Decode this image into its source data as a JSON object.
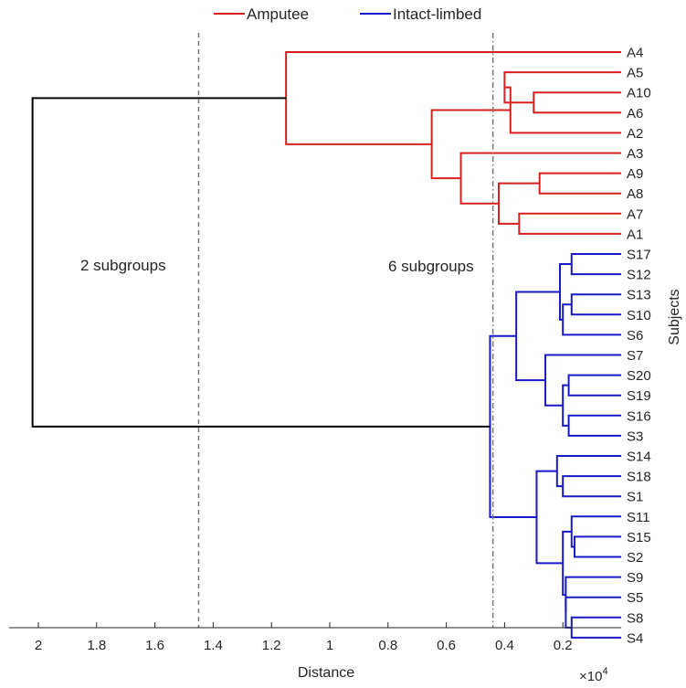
{
  "chart_data": {
    "type": "dendrogram",
    "orientation": "leaves-right, distance-axis-reversed",
    "xlabel": "Distance",
    "ylabel": "Subjects",
    "x_exponent_label": "×10",
    "x_exponent_power": "4",
    "xlim": [
      0,
      2.1
    ],
    "x_ticks": [
      2,
      1.8,
      1.6,
      1.4,
      1.2,
      1,
      0.8,
      0.6,
      0.4,
      0.2
    ],
    "x_tick_labels": [
      "2",
      "1.8",
      "1.6",
      "1.4",
      "1.2",
      "1",
      "0.8",
      "0.6",
      "0.4",
      "0.2"
    ],
    "legend": {
      "placement": "top-center",
      "entries": [
        {
          "label": "Amputee",
          "color": "#d62020"
        },
        {
          "label": "Intact-limbed",
          "color": "#1919c8"
        }
      ]
    },
    "leaves": [
      "A4",
      "A5",
      "A10",
      "A6",
      "A2",
      "A3",
      "A9",
      "A8",
      "A7",
      "A1",
      "S17",
      "S12",
      "S13",
      "S10",
      "S6",
      "S7",
      "S20",
      "S19",
      "S16",
      "S3",
      "S14",
      "S18",
      "S1",
      "S11",
      "S15",
      "S2",
      "S9",
      "S5",
      "S8",
      "S4"
    ],
    "merges": [
      {
        "a": "A10",
        "b": "A6",
        "height": 0.3
      },
      {
        "a": "A5",
        "b": "A10+A6",
        "height": 0.4
      },
      {
        "a": "A5+A10+A6",
        "b": "A2",
        "height": 0.38
      },
      {
        "a": "A9",
        "b": "A8",
        "height": 0.28
      },
      {
        "a": "A7",
        "b": "A1",
        "height": 0.35
      },
      {
        "a": "A9+A8",
        "b": "A7+A1",
        "height": 0.42
      },
      {
        "a": "A3",
        "b": "A9+A8+A7+A1",
        "height": 0.55
      },
      {
        "a": "A5..A2",
        "b": "A3..A1",
        "height": 0.65
      },
      {
        "a": "A4",
        "b": "A5..A1",
        "height": 1.15
      },
      {
        "a": "S17",
        "b": "S12",
        "height": 0.17
      },
      {
        "a": "S13",
        "b": "S10",
        "height": 0.17
      },
      {
        "a": "S13+S10",
        "b": "S6",
        "height": 0.2
      },
      {
        "a": "S17+S12",
        "b": "S13+S10+S6",
        "height": 0.21
      },
      {
        "a": "S20",
        "b": "S19",
        "height": 0.18
      },
      {
        "a": "S16",
        "b": "S3",
        "height": 0.18
      },
      {
        "a": "S20+S19",
        "b": "S16+S3",
        "height": 0.2
      },
      {
        "a": "S7",
        "b": "S20+S19+S16+S3",
        "height": 0.26
      },
      {
        "a": "S17..S6",
        "b": "S7..S3",
        "height": 0.36
      },
      {
        "a": "S18",
        "b": "S1",
        "height": 0.2
      },
      {
        "a": "S14",
        "b": "S18+S1",
        "height": 0.22
      },
      {
        "a": "S15",
        "b": "S2",
        "height": 0.16
      },
      {
        "a": "S11",
        "b": "S15+S2",
        "height": 0.17
      },
      {
        "a": "S8",
        "b": "S4",
        "height": 0.17
      },
      {
        "a": "S5",
        "b": "S8+S4",
        "height": 0.19
      },
      {
        "a": "S9",
        "b": "S5+S8+S4",
        "height": 0.19
      },
      {
        "a": "S11+S15+S2",
        "b": "S9..S4",
        "height": 0.2
      },
      {
        "a": "S14+S18+S1",
        "b": "S11..S4",
        "height": 0.29
      },
      {
        "a": "S17..S3",
        "b": "S14..S4",
        "height": 0.45
      },
      {
        "a": "A4..A1",
        "b": "S17..S4",
        "height": 2.02
      }
    ],
    "cut_lines": [
      {
        "distance": 1.45,
        "label": "2 subgroups"
      },
      {
        "distance": 0.44,
        "label": "6 subgroups"
      }
    ]
  }
}
